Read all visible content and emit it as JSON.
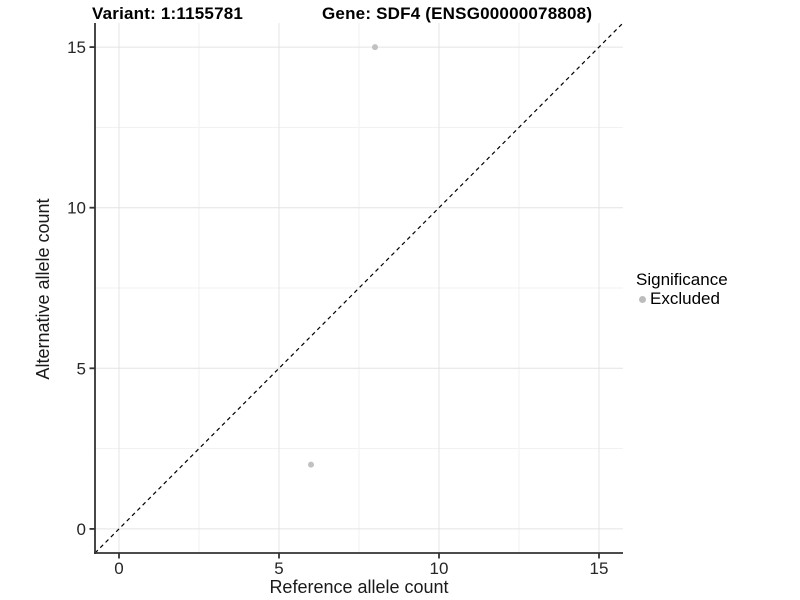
{
  "titles": {
    "variant": "Variant: 1:1155781",
    "gene": "Gene: SDF4 (ENSG00000078808)"
  },
  "legend": {
    "title": "Significance",
    "items": [
      {
        "label": "Excluded",
        "color": "#bdbdbd"
      }
    ]
  },
  "chart_data": {
    "type": "scatter",
    "title": "Variant: 1:1155781   Gene: SDF4 (ENSG00000078808)",
    "xlabel": "Reference allele count",
    "ylabel": "Alternative allele count",
    "xlim": [
      -0.75,
      15.75
    ],
    "ylim": [
      -0.75,
      15.75
    ],
    "x_ticks": [
      0,
      5,
      10,
      15
    ],
    "y_ticks": [
      0,
      5,
      10,
      15
    ],
    "x_minor": [
      2.5,
      7.5,
      12.5
    ],
    "y_minor": [
      2.5,
      7.5,
      12.5
    ],
    "grid": {
      "major_color": "#e4e4e4",
      "minor_color": "#f1f1f1"
    },
    "series": [
      {
        "name": "Excluded",
        "color": "#c1c1c1",
        "points": [
          {
            "x": 8,
            "y": 15
          },
          {
            "x": 6,
            "y": 2
          }
        ]
      }
    ],
    "reference_line": {
      "slope": 1,
      "intercept": 0,
      "style": "dashed",
      "color": "#000000"
    },
    "legend_position": "right"
  },
  "colors": {
    "background": "#ffffff",
    "axis_line": "#333333",
    "tick_label": "#262626",
    "axis_title": "#1a1a1a",
    "title_text": "#000000"
  }
}
